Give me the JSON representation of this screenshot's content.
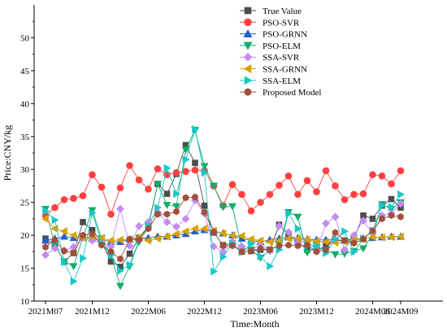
{
  "chart_data": {
    "type": "line",
    "xlabel": "Time:Month",
    "ylabel": "Price:CNY/kg",
    "ylim": [
      10,
      55
    ],
    "yticks": [
      10,
      15,
      20,
      25,
      30,
      35,
      40,
      45,
      50
    ],
    "x_count": 39,
    "xtick_labels": [
      {
        "index": 0,
        "label": "2021M07"
      },
      {
        "index": 5,
        "label": "2021M12"
      },
      {
        "index": 11,
        "label": "2022M06"
      },
      {
        "index": 17,
        "label": "2022M12"
      },
      {
        "index": 23,
        "label": "2023M06"
      },
      {
        "index": 29,
        "label": "2023M12"
      },
      {
        "index": 35,
        "label": "2024M06"
      },
      {
        "index": 38,
        "label": "2024M09"
      }
    ],
    "legend_position": "top-right",
    "series": [
      {
        "name": "True Value",
        "color": "#4d4d4d",
        "marker": "square",
        "values": [
          19.5,
          18.5,
          16.0,
          17.3,
          22.0,
          20.8,
          19.0,
          16.0,
          15.2,
          17.2,
          19.6,
          21.4,
          27.8,
          26.3,
          29.3,
          33.7,
          31.0,
          24.5,
          20.4,
          18.5,
          18.8,
          17.5,
          17.6,
          17.8,
          17.8,
          21.6,
          20.0,
          19.0,
          17.8,
          17.8,
          18.3,
          19.2,
          19.2,
          19.5,
          23.0,
          22.5,
          24.5,
          25.5,
          24.2
        ]
      },
      {
        "name": "PSO-SVR",
        "color": "#ff4040",
        "marker": "circle",
        "values": [
          23.0,
          24.2,
          25.4,
          25.6,
          26.0,
          29.2,
          27.3,
          23.2,
          27.2,
          30.6,
          28.4,
          27.0,
          30.1,
          29.2,
          29.5,
          29.7,
          29.9,
          29.8,
          27.5,
          24.5,
          27.7,
          26.2,
          23.7,
          25.0,
          26.2,
          27.6,
          29.0,
          26.2,
          28.3,
          26.6,
          29.8,
          27.5,
          25.4,
          26.2,
          26.3,
          29.2,
          29.0,
          27.8,
          29.8
        ]
      },
      {
        "name": "PSO-GRNN",
        "color": "#1f5fd0",
        "marker": "triangle-up",
        "values": [
          19.2,
          19.5,
          19.8,
          19.6,
          19.7,
          19.5,
          19.3,
          19.0,
          19.0,
          19.4,
          19.6,
          19.6,
          19.8,
          19.8,
          20.0,
          20.2,
          20.6,
          20.8,
          20.6,
          20.3,
          20.0,
          19.5,
          19.2,
          19.0,
          19.3,
          19.5,
          19.7,
          19.6,
          19.4,
          19.3,
          19.3,
          19.3,
          19.2,
          19.4,
          19.5,
          19.6,
          19.7,
          19.8,
          19.8
        ]
      },
      {
        "name": "PSO-ELM",
        "color": "#13ad6a",
        "marker": "triangle-down",
        "values": [
          24.0,
          18.5,
          16.0,
          15.3,
          19.7,
          23.8,
          19.5,
          17.0,
          12.3,
          15.3,
          19.0,
          21.6,
          27.8,
          24.6,
          24.4,
          33.0,
          36.0,
          30.5,
          27.5,
          24.3,
          24.4,
          18.0,
          17.8,
          16.6,
          17.7,
          18.6,
          23.5,
          22.8,
          17.4,
          18.2,
          17.8,
          17.1,
          17.2,
          17.6,
          18.0,
          20.0,
          24.7,
          24.0,
          25.0
        ]
      },
      {
        "name": "SSA-SVR",
        "color": "#c28cf0",
        "marker": "diamond",
        "values": [
          17.0,
          18.0,
          17.7,
          18.2,
          19.6,
          19.2,
          19.0,
          18.3,
          24.0,
          18.4,
          21.4,
          22.0,
          23.5,
          22.0,
          21.3,
          22.5,
          25.3,
          23.3,
          18.3,
          17.5,
          19.0,
          18.3,
          17.6,
          18.8,
          17.6,
          21.4,
          20.5,
          18.8,
          19.2,
          17.7,
          21.8,
          22.8,
          17.8,
          20.0,
          22.2,
          20.3,
          23.0,
          23.3,
          24.8
        ]
      },
      {
        "name": "SSA-GRNN",
        "color": "#d9a000",
        "marker": "triangle-left",
        "values": [
          22.5,
          21.0,
          20.6,
          20.0,
          19.6,
          19.8,
          19.6,
          19.2,
          19.3,
          19.4,
          19.7,
          19.2,
          19.5,
          19.8,
          20.2,
          20.6,
          21.0,
          21.0,
          20.7,
          20.3,
          20.0,
          19.9,
          19.4,
          19.2,
          19.0,
          19.2,
          19.5,
          19.5,
          19.3,
          19.1,
          19.0,
          18.9,
          19.0,
          19.3,
          19.4,
          19.7,
          19.7,
          19.7,
          19.8
        ]
      },
      {
        "name": "SSA-ELM",
        "color": "#17c8c8",
        "marker": "triangle-right",
        "values": [
          23.7,
          22.3,
          15.9,
          13.0,
          16.5,
          23.4,
          18.8,
          17.0,
          14.6,
          15.5,
          19.2,
          21.4,
          24.2,
          30.2,
          26.3,
          31.5,
          36.1,
          29.5,
          14.5,
          16.7,
          18.8,
          17.4,
          18.7,
          16.8,
          15.3,
          17.8,
          23.3,
          21.0,
          18.4,
          18.4,
          17.3,
          19.4,
          20.6,
          17.5,
          19.5,
          20.7,
          24.5,
          24.3,
          26.2
        ]
      },
      {
        "name": "Proposed Model",
        "color": "#a0503c",
        "marker": "hexagon",
        "values": [
          18.2,
          19.3,
          17.6,
          17.3,
          20.0,
          20.2,
          18.5,
          17.5,
          16.4,
          19.4,
          19.3,
          21.0,
          23.2,
          23.2,
          23.6,
          25.7,
          25.8,
          23.5,
          20.5,
          18.4,
          18.4,
          17.5,
          17.6,
          18.0,
          17.8,
          18.4,
          18.5,
          18.4,
          18.5,
          17.5,
          17.8,
          20.4,
          19.2,
          18.8,
          19.4,
          20.7,
          22.5,
          23.0,
          22.8
        ]
      }
    ]
  }
}
